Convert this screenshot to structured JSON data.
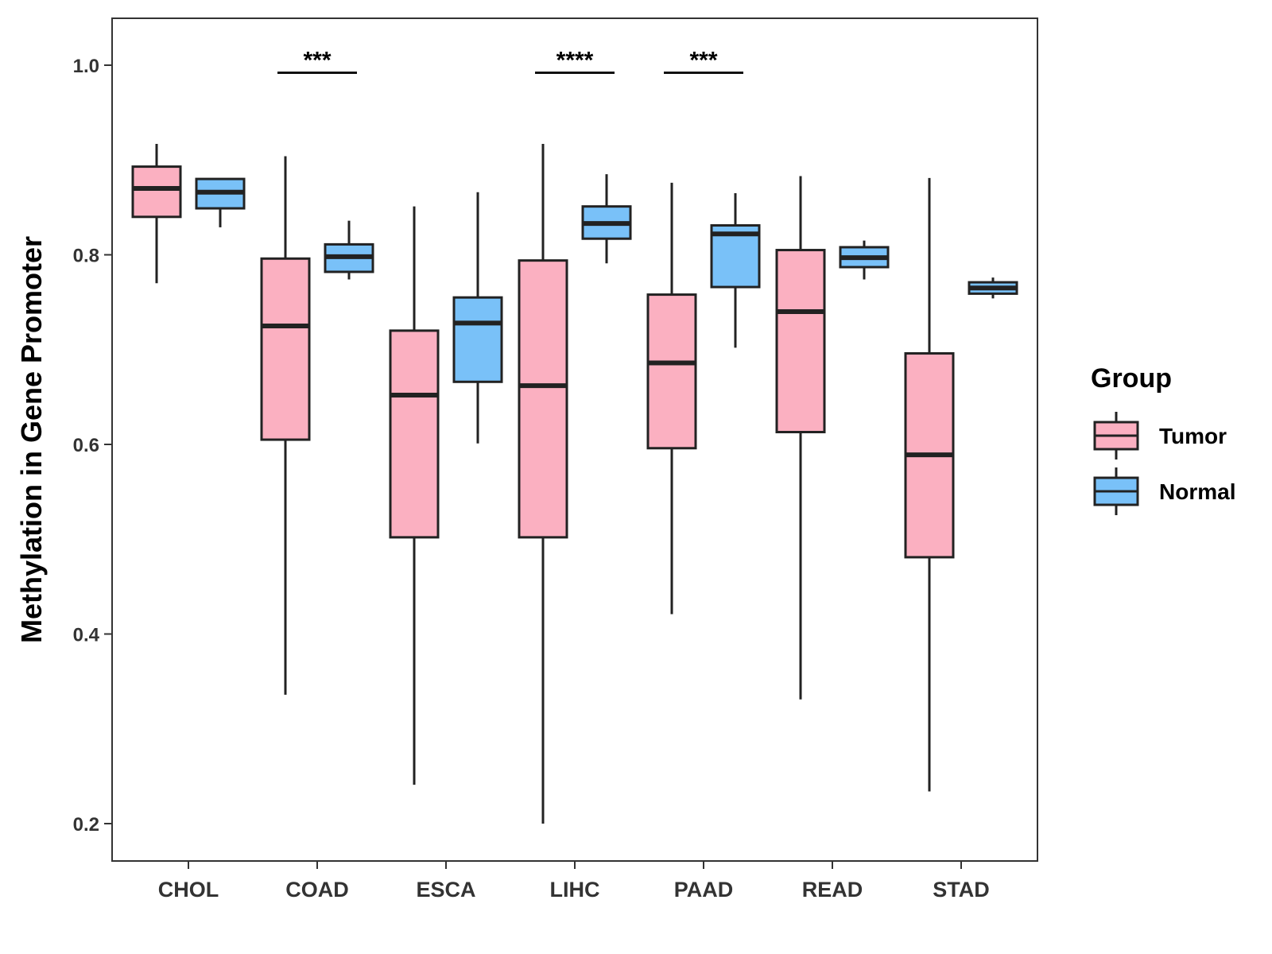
{
  "chart_data": {
    "type": "boxplot",
    "ylabel": "Methylation in Gene Promoter",
    "xlabel": "",
    "ylim": [
      0.16,
      1.05
    ],
    "yticks": [
      0.2,
      0.4,
      0.6,
      0.8,
      1.0
    ],
    "ytick_labels": [
      "0.2",
      "0.4",
      "0.6",
      "0.8",
      "1.0"
    ],
    "categories": [
      "CHOL",
      "COAD",
      "ESCA",
      "LIHC",
      "PAAD",
      "READ",
      "STAD"
    ],
    "legend": {
      "title": "Group",
      "position": "right",
      "entries": [
        {
          "name": "Tumor",
          "color": "#FBB0C1"
        },
        {
          "name": "Normal",
          "color": "#79C1F8"
        }
      ]
    },
    "series": [
      {
        "name": "Tumor",
        "color": "#FBB0C1",
        "boxes": [
          {
            "category": "CHOL",
            "min": 0.77,
            "q1": 0.84,
            "median": 0.87,
            "q3": 0.893,
            "max": 0.917
          },
          {
            "category": "COAD",
            "min": 0.336,
            "q1": 0.605,
            "median": 0.725,
            "q3": 0.796,
            "max": 0.904
          },
          {
            "category": "ESCA",
            "min": 0.241,
            "q1": 0.502,
            "median": 0.652,
            "q3": 0.72,
            "max": 0.851
          },
          {
            "category": "LIHC",
            "min": 0.2,
            "q1": 0.502,
            "median": 0.662,
            "q3": 0.794,
            "max": 0.917
          },
          {
            "category": "PAAD",
            "min": 0.421,
            "q1": 0.596,
            "median": 0.686,
            "q3": 0.758,
            "max": 0.876
          },
          {
            "category": "READ",
            "min": 0.331,
            "q1": 0.613,
            "median": 0.74,
            "q3": 0.805,
            "max": 0.883
          },
          {
            "category": "STAD",
            "min": 0.234,
            "q1": 0.481,
            "median": 0.589,
            "q3": 0.696,
            "max": 0.881
          }
        ]
      },
      {
        "name": "Normal",
        "color": "#79C1F8",
        "boxes": [
          {
            "category": "CHOL",
            "min": 0.829,
            "q1": 0.849,
            "median": 0.866,
            "q3": 0.88,
            "max": 0.88
          },
          {
            "category": "COAD",
            "min": 0.774,
            "q1": 0.782,
            "median": 0.798,
            "q3": 0.811,
            "max": 0.836
          },
          {
            "category": "ESCA",
            "min": 0.601,
            "q1": 0.666,
            "median": 0.728,
            "q3": 0.755,
            "max": 0.866
          },
          {
            "category": "LIHC",
            "min": 0.791,
            "q1": 0.817,
            "median": 0.833,
            "q3": 0.851,
            "max": 0.885
          },
          {
            "category": "PAAD",
            "min": 0.702,
            "q1": 0.766,
            "median": 0.822,
            "q3": 0.831,
            "max": 0.865
          },
          {
            "category": "READ",
            "min": 0.774,
            "q1": 0.787,
            "median": 0.797,
            "q3": 0.808,
            "max": 0.815
          },
          {
            "category": "STAD",
            "min": 0.754,
            "q1": 0.759,
            "median": 0.765,
            "q3": 0.771,
            "max": 0.776
          }
        ]
      }
    ],
    "significance": [
      {
        "category": "COAD",
        "label": "***",
        "y": 0.992
      },
      {
        "category": "LIHC",
        "label": "****",
        "y": 0.992
      },
      {
        "category": "PAAD",
        "label": "***",
        "y": 0.992
      }
    ],
    "grid": false
  }
}
